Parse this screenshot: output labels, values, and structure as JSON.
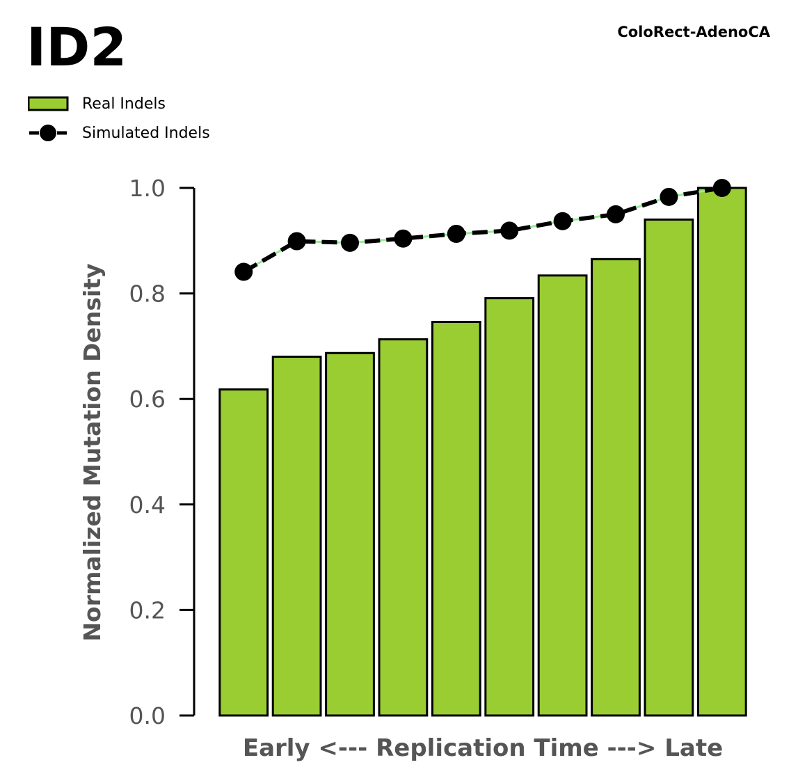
{
  "chart_data": {
    "type": "bar",
    "title": "ID2",
    "subtitle": "ColoRect-AdenoCA",
    "xlabel": "Early <--- Replication Time ---> Late",
    "ylabel": "Normalized Mutation Density",
    "ylim": [
      0,
      1.0
    ],
    "yticks": [
      "0.0",
      "0.2",
      "0.4",
      "0.6",
      "0.8",
      "1.0"
    ],
    "grid": false,
    "legend_position": "top-left",
    "series": [
      {
        "name": "Real Indels",
        "kind": "bar",
        "color": "#9ACD32",
        "values": [
          0.618,
          0.68,
          0.687,
          0.713,
          0.746,
          0.791,
          0.834,
          0.865,
          0.94,
          1.0
        ]
      },
      {
        "name": "Simulated Indels",
        "kind": "line",
        "color": "#000000",
        "values": [
          0.841,
          0.899,
          0.896,
          0.904,
          0.913,
          0.919,
          0.937,
          0.95,
          0.983,
          1.0
        ]
      }
    ]
  }
}
